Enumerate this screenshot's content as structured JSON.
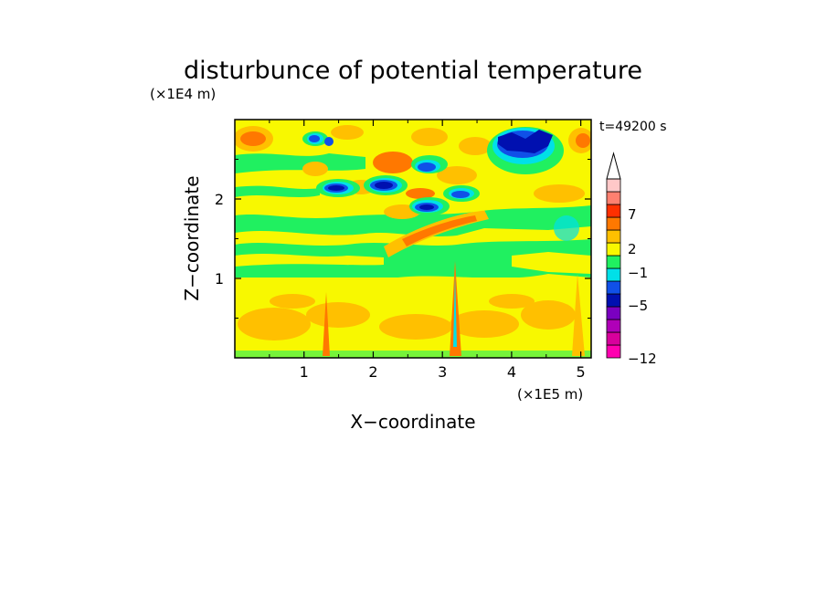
{
  "chart_data": {
    "type": "heatmap",
    "title": "disturbunce of potential temperature",
    "time_label": "t=49200 s",
    "xlabel": "X−coordinate",
    "ylabel": "Z−coordinate",
    "x_unit": "(×1E5 m)",
    "y_unit": "(×1E4 m)",
    "xlim": [
      0,
      5.15
    ],
    "ylim": [
      0,
      3.0
    ],
    "x_ticks": [
      "1",
      "2",
      "3",
      "4",
      "5"
    ],
    "y_ticks": [
      "1",
      "2"
    ],
    "colorbar": {
      "labels": [
        "7",
        "2",
        "−1",
        "−5",
        "−12"
      ],
      "label_values": [
        7,
        2,
        -1,
        -5,
        -12
      ],
      "extend": "max",
      "colors_bottom_to_top": [
        "#ff00b0",
        "#d8009c",
        "#b000b8",
        "#7a00c0",
        "#0010b0",
        "#1050e8",
        "#00e0e8",
        "#20f060",
        "#f8f800",
        "#ffc000",
        "#ff7800",
        "#ff3000",
        "#ff8070",
        "#ffc8c8"
      ]
    },
    "colors": {
      "green": "#20f060",
      "yellow": "#f8f800",
      "light_orange": "#ffc000",
      "orange": "#ff7800",
      "red": "#ff3000",
      "cyan": "#00e0e8",
      "blue": "#1050e8",
      "dark_blue": "#0010b0"
    }
  }
}
